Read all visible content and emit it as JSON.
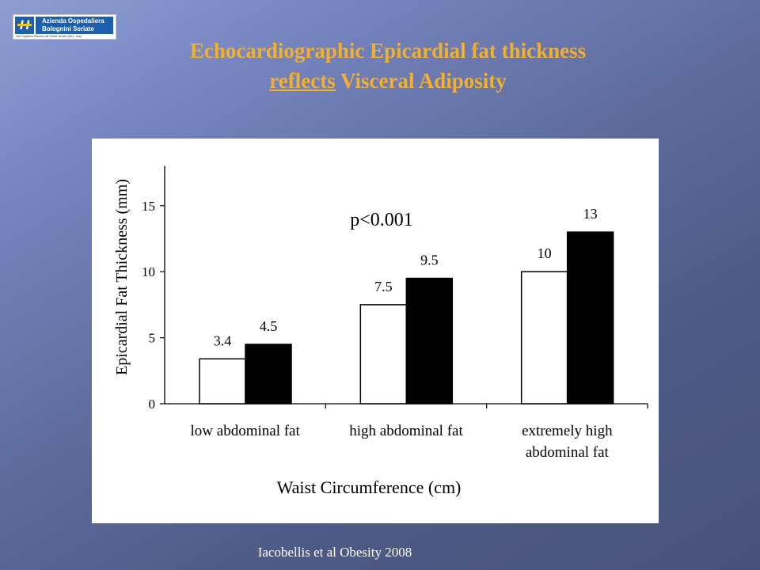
{
  "logo": {
    "mark": "H",
    "line1": "Azienda Ospedaliera",
    "line2": "Bolognini Seriate",
    "address": "Via Guglielmo Marconi,38          24068 Seriate (BG) - Italy"
  },
  "title": {
    "line1": "Echocardiographic  Epicardial fat thickness",
    "line2_underlined": "reflects",
    "line2_rest": " Visceral Adiposity"
  },
  "chart_data": {
    "type": "bar",
    "categories": [
      [
        "low abdominal fat"
      ],
      [
        "high abdominal fat"
      ],
      [
        "extremely high",
        "abdominal fat"
      ]
    ],
    "series": [
      {
        "values": [
          3.4,
          7.5,
          10
        ],
        "color": "#ffffff",
        "labels": [
          "3.4",
          "7.5",
          "10"
        ]
      },
      {
        "values": [
          4.5,
          9.5,
          13
        ],
        "color": "#000000",
        "labels": [
          "4.5",
          "9.5",
          "13"
        ]
      }
    ],
    "xlabel": "Waist Circumference (cm)",
    "ylabel": "Epicardial Fat Thickness (mm)",
    "ylim": [
      0,
      18
    ],
    "yticks": [
      0,
      5,
      10,
      15
    ],
    "annotation": "p<0.001",
    "grid": false,
    "legend": "none"
  },
  "citation": "Iacobellis et al Obesity 2008"
}
